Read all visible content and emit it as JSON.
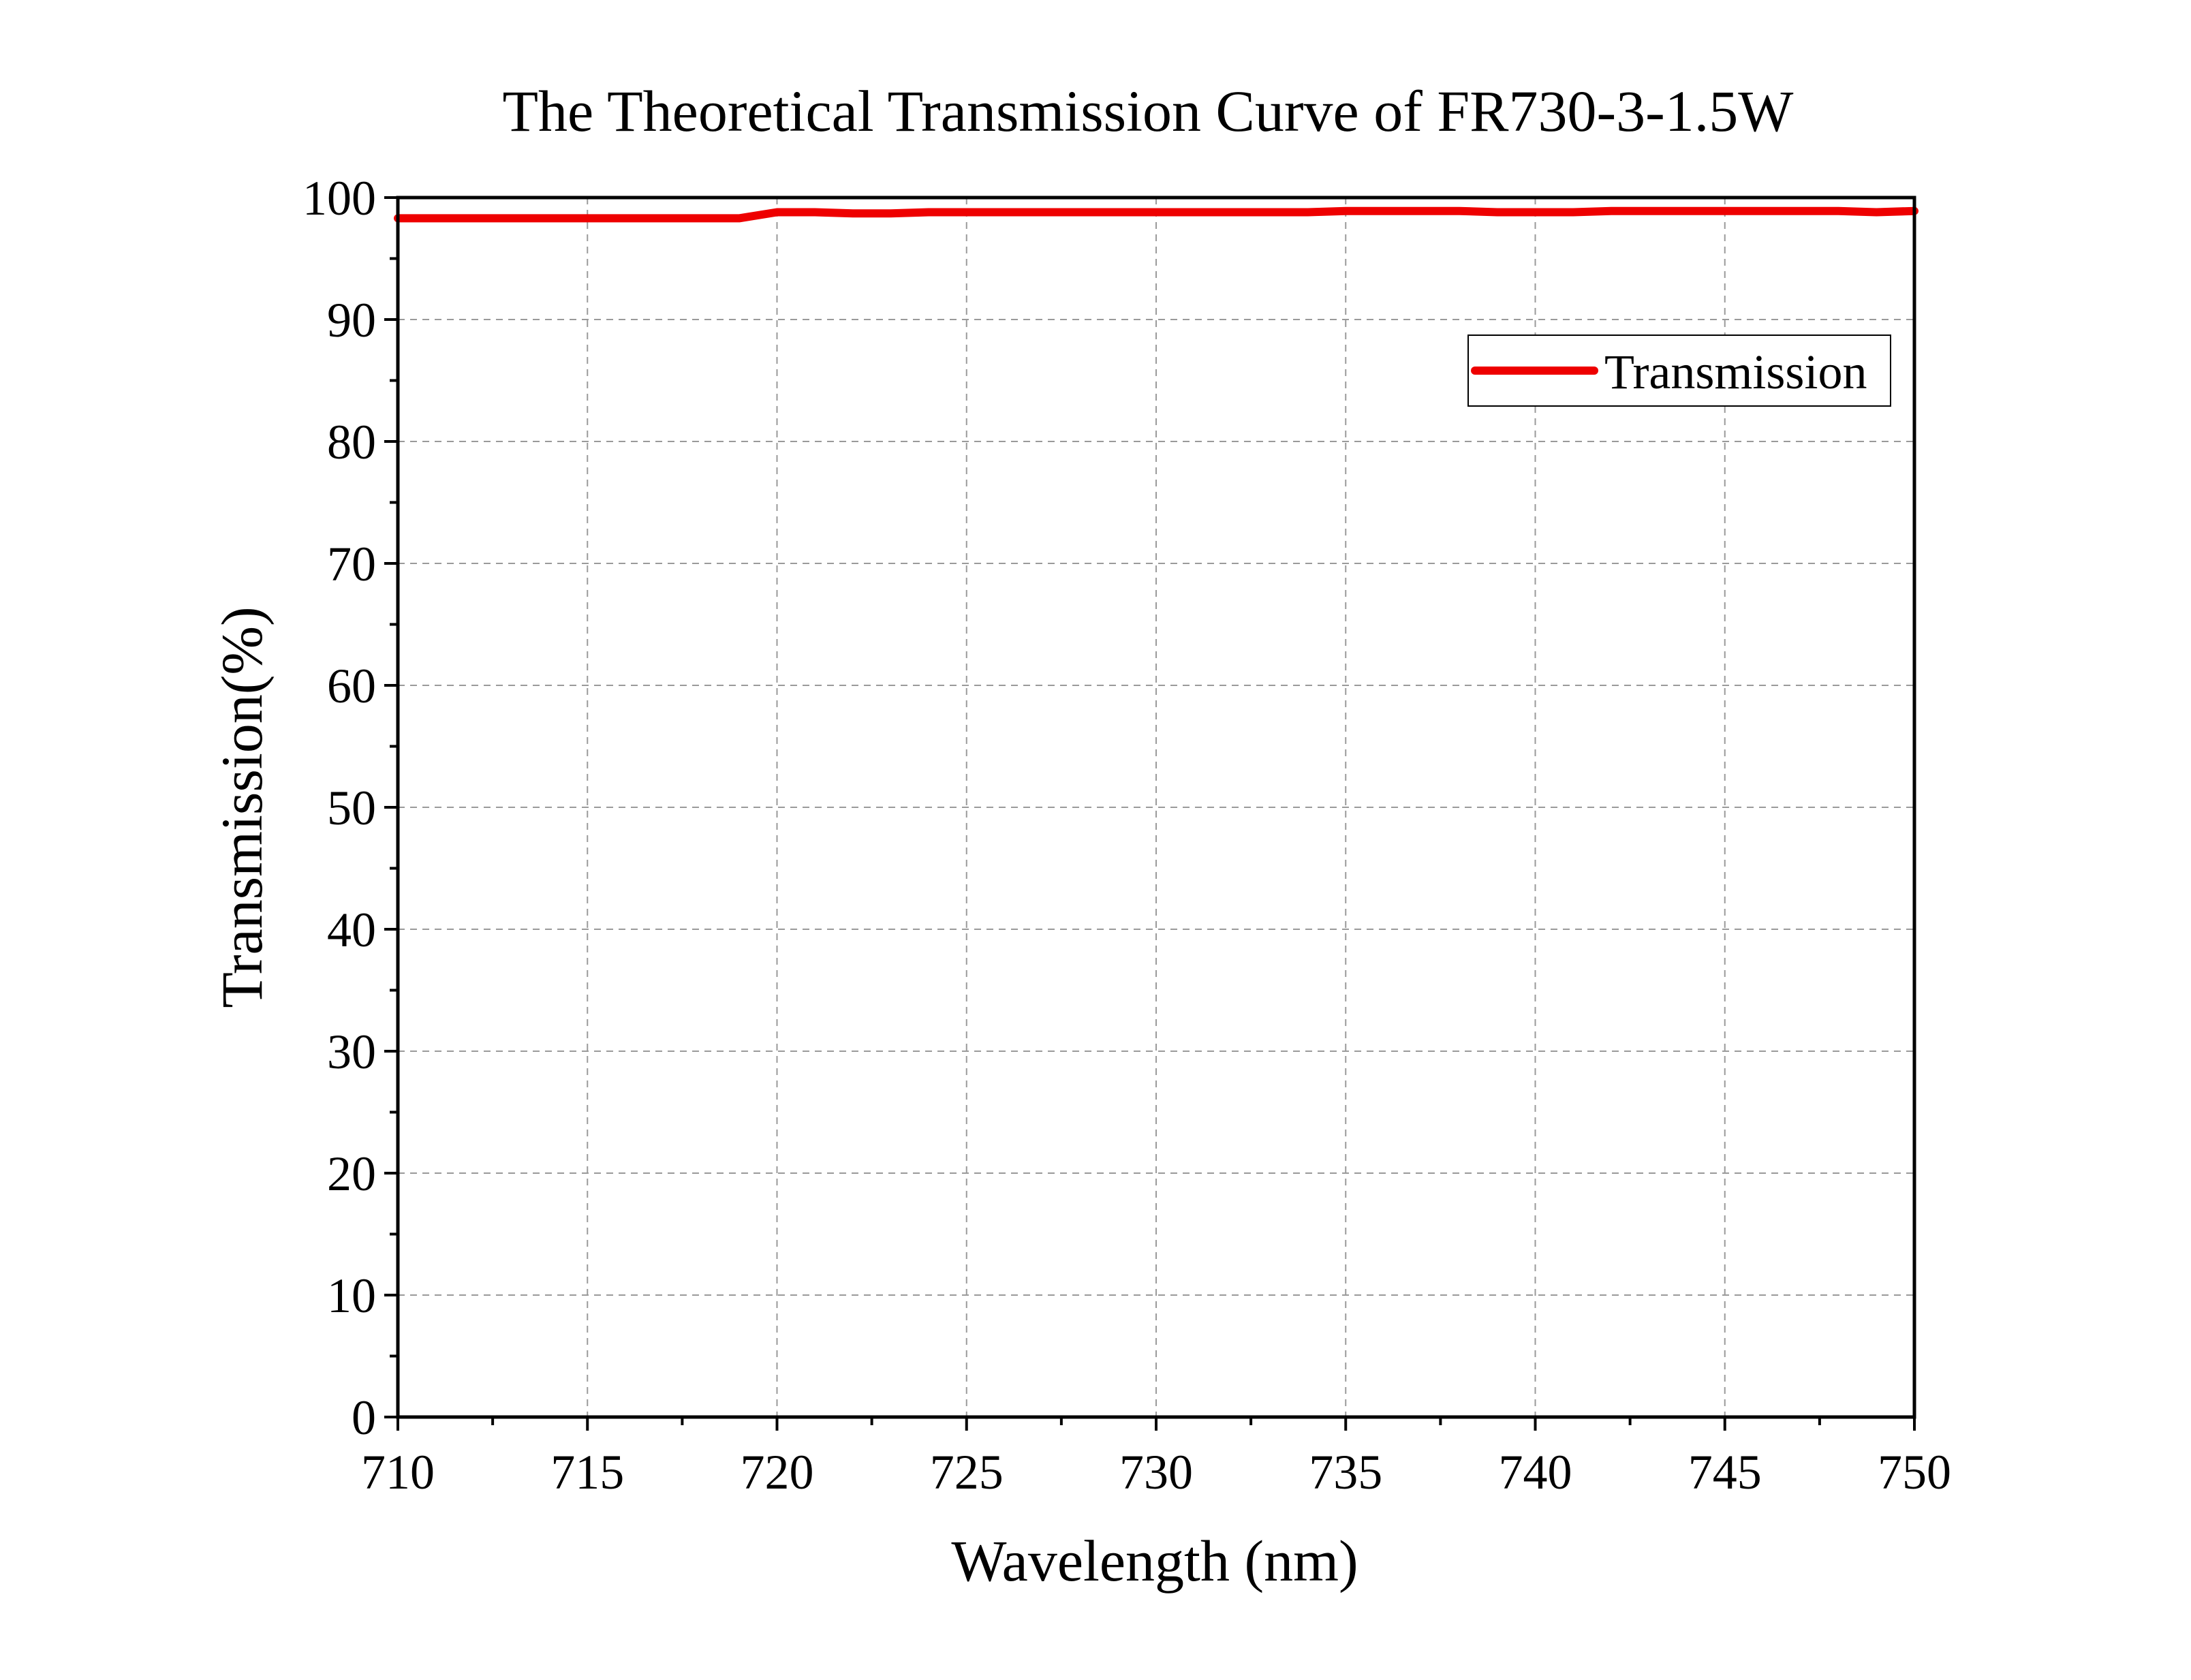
{
  "chart_data": {
    "type": "line",
    "title": "The Theoretical Transmission Curve of FR730-3-1.5W",
    "xlabel": "Wavelength (nm)",
    "ylabel": "Transmission(%)",
    "xlim": [
      710,
      750
    ],
    "ylim": [
      0,
      100
    ],
    "xticks": [
      "710",
      "715",
      "720",
      "725",
      "730",
      "735",
      "740",
      "745",
      "750"
    ],
    "yticks": [
      "0",
      "10",
      "20",
      "30",
      "40",
      "50",
      "60",
      "70",
      "80",
      "90",
      "100"
    ],
    "grid": true,
    "legend_position": "top-right",
    "series": [
      {
        "name": "Transmission",
        "color": "#ee0000",
        "x": [
          710,
          711,
          712,
          713,
          714,
          715,
          716,
          717,
          718,
          719,
          720,
          721,
          722,
          723,
          724,
          725,
          726,
          727,
          728,
          729,
          730,
          731,
          732,
          733,
          734,
          735,
          736,
          737,
          738,
          739,
          740,
          741,
          742,
          743,
          744,
          745,
          746,
          747,
          748,
          749,
          750
        ],
        "y": [
          98.3,
          98.3,
          98.3,
          98.3,
          98.3,
          98.3,
          98.3,
          98.3,
          98.3,
          98.3,
          98.8,
          98.8,
          98.7,
          98.7,
          98.8,
          98.8,
          98.8,
          98.8,
          98.8,
          98.8,
          98.8,
          98.8,
          98.8,
          98.8,
          98.8,
          98.9,
          98.9,
          98.9,
          98.9,
          98.8,
          98.8,
          98.8,
          98.9,
          98.9,
          98.9,
          98.9,
          98.9,
          98.9,
          98.9,
          98.8,
          98.9
        ]
      }
    ]
  }
}
